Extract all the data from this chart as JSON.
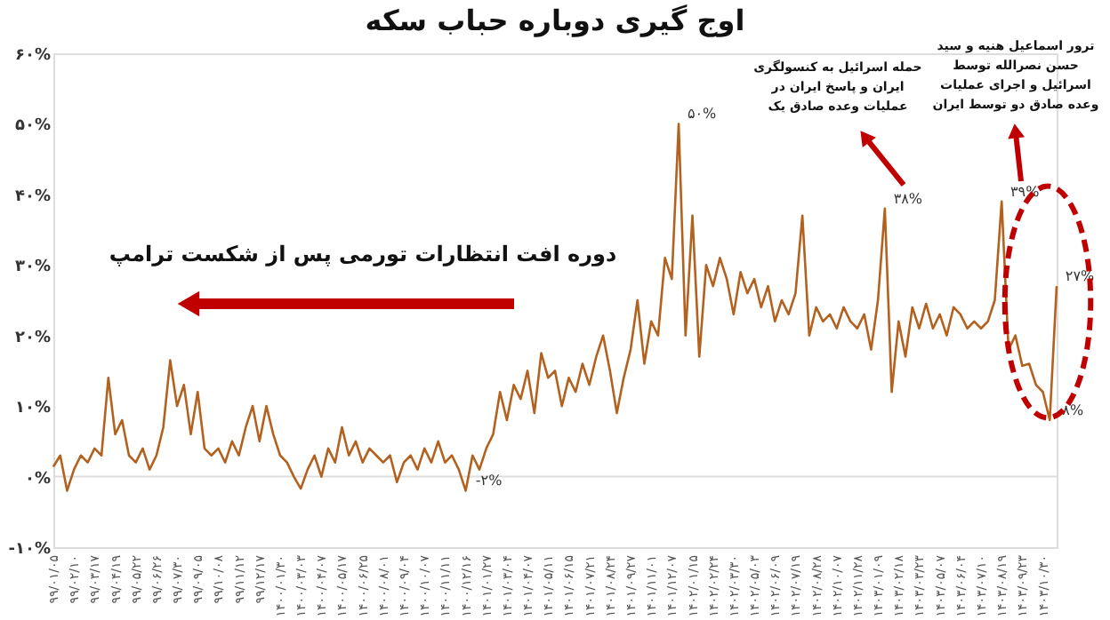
{
  "chart_data": {
    "type": "line",
    "title": "اوج گیری دوباره حباب سکه",
    "categories": [
      "۹۹/۰۱/۰۵",
      null,
      null,
      "۹۹/۰۲/۱۰",
      null,
      null,
      "۹۹/۰۳/۱۷",
      null,
      null,
      "۹۹/۰۴/۱۹",
      null,
      null,
      "۹۹/۰۵/۲۲",
      null,
      null,
      "۹۹/۰۶/۲۶",
      null,
      null,
      "۹۹/۰۷/۳۰",
      null,
      null,
      "۹۹/۰۹/۰۵",
      null,
      null,
      "۹۹/۱۰/۰۸",
      null,
      null,
      "۹۹/۱۱/۱۲",
      null,
      null,
      "۹۹/۱۲/۱۷",
      null,
      null,
      "۱۴۰۰/۰۱/۳۰",
      null,
      null,
      "۱۴۰۰/۰۳/۰۳",
      null,
      null,
      "۱۴۰۰/۰۴/۰۷",
      null,
      null,
      "۱۴۰۰/۰۵/۱۷",
      null,
      null,
      "۱۴۰۰/۰۶/۲۵",
      null,
      null,
      "۱۴۰۰/۰۸/۰۱",
      null,
      null,
      "۱۴۰۰/۰۹/۰۴",
      null,
      null,
      "۱۴۰۰/۱۰/۰۷",
      null,
      null,
      "۱۴۰۰/۱۱/۱۱",
      null,
      null,
      "۱۴۰۰/۱۲/۱۶",
      null,
      null,
      "۱۴۰۱/۰۱/۲۷",
      null,
      null,
      "۱۴۰۱/۰۳/۰۴",
      null,
      null,
      "۱۴۰۱/۰۴/۰۷",
      null,
      null,
      "۱۴۰۱/۰۵/۱۱",
      null,
      null,
      "۱۴۰۱/۰۶/۱۵",
      null,
      null,
      "۱۴۰۱/۰۷/۲۱",
      null,
      null,
      "۱۴۰۱/۰۸/۲۴",
      null,
      null,
      "۱۴۰۱/۰۹/۲۷",
      null,
      null,
      "۱۴۰۱/۱۱/۰۱",
      null,
      null,
      "۱۴۰۱/۱۲/۰۷",
      null,
      null,
      "۱۴۰۲/۰۱/۱۵",
      null,
      null,
      "۱۴۰۲/۰۲/۲۴",
      null,
      null,
      "۱۴۰۲/۰۳/۳۰",
      null,
      null,
      "۱۴۰۲/۰۵/۰۳",
      null,
      null,
      "۱۴۰۲/۰۶/۰۹",
      null,
      null,
      "۱۴۰۲/۰۷/۱۹",
      null,
      null,
      "۱۴۰۲/۰۸/۲۸",
      null,
      null,
      "۱۴۰۲/۱۰/۰۷",
      null,
      null,
      "۱۴۰۲/۱۱/۲۸",
      null,
      null,
      "۱۴۰۳/۰۱/۰۹",
      null,
      null,
      "۱۴۰۳/۰۲/۱۸",
      null,
      null,
      "۱۴۰۳/۰۳/۲۳",
      null,
      null,
      "۱۴۰۳/۰۵/۰۷",
      null,
      null,
      "۱۴۰۳/۰۶/۰۴",
      null,
      null,
      "۱۴۰۳/۰۷/۱۰",
      null,
      null,
      "۱۴۰۳/۰۸/۱۹",
      null,
      null,
      "۱۴۰۳/۰۹/۲۳",
      null,
      null,
      "۱۴۰۳/۱۰/۳۰",
      null,
      null
    ],
    "series": [
      {
        "color": "#b3611e",
        "values": [
          1.4,
          3,
          -2,
          1,
          3,
          2,
          4,
          3,
          14,
          6,
          8,
          3,
          2,
          4,
          1,
          3,
          7,
          16.5,
          10,
          13,
          6,
          12,
          4,
          3,
          4,
          2,
          5,
          3,
          7,
          10,
          5,
          10,
          6,
          3,
          2,
          0,
          -1.7,
          1,
          3,
          0,
          4,
          2,
          7,
          3,
          5,
          2,
          4,
          3,
          2,
          3,
          -0.8,
          2,
          3,
          1,
          4,
          2,
          5,
          2,
          3,
          1,
          -2,
          3,
          1,
          4,
          6,
          12,
          8,
          13,
          11,
          15,
          9,
          17.5,
          14,
          15,
          10,
          14,
          12,
          16,
          13,
          17,
          20,
          15,
          9,
          14,
          18,
          25,
          16,
          22,
          20,
          31,
          28,
          50,
          20,
          37,
          17,
          30,
          27,
          31,
          28,
          23,
          29,
          26,
          28,
          24,
          27,
          22,
          25,
          23,
          26,
          37,
          20,
          24,
          22,
          23,
          21,
          24,
          22,
          21,
          23,
          18,
          25,
          38,
          12,
          22,
          17,
          24,
          21,
          24.5,
          21,
          23,
          20,
          24,
          23,
          21,
          22,
          21,
          22,
          25,
          39,
          18,
          20,
          15.7,
          16,
          13,
          12,
          8,
          27
        ],
        "value_labels": [
          null,
          null,
          null,
          null,
          null,
          null,
          null,
          null,
          null,
          null,
          null,
          null,
          null,
          null,
          null,
          null,
          null,
          null,
          null,
          null,
          null,
          null,
          null,
          null,
          null,
          null,
          null,
          null,
          null,
          null,
          null,
          null,
          null,
          null,
          null,
          null,
          null,
          null,
          null,
          null,
          null,
          null,
          null,
          null,
          null,
          null,
          null,
          null,
          null,
          null,
          null,
          null,
          null,
          null,
          null,
          null,
          null,
          null,
          null,
          null,
          "-۲%",
          null,
          null,
          null,
          null,
          null,
          null,
          null,
          null,
          null,
          null,
          null,
          null,
          null,
          null,
          null,
          null,
          null,
          null,
          null,
          null,
          null,
          null,
          null,
          null,
          null,
          null,
          null,
          null,
          null,
          null,
          "۵۰%",
          null,
          null,
          null,
          null,
          null,
          null,
          null,
          null,
          null,
          null,
          null,
          null,
          null,
          null,
          null,
          null,
          null,
          null,
          null,
          null,
          null,
          null,
          null,
          null,
          null,
          null,
          null,
          null,
          null,
          "۳۸%",
          null,
          null,
          null,
          null,
          null,
          null,
          null,
          null,
          null,
          null,
          null,
          null,
          null,
          null,
          null,
          null,
          "۳۹%",
          null,
          null,
          null,
          null,
          null,
          null,
          "۸%",
          "۲۷%"
        ]
      }
    ],
    "ylim": [
      -10,
      60
    ],
    "yticks": [
      {
        "value": -10,
        "label": "-۱۰%"
      },
      {
        "value": 0,
        "label": "۰%"
      },
      {
        "value": 10,
        "label": "۱۰%"
      },
      {
        "value": 20,
        "label": "۲۰%"
      },
      {
        "value": 30,
        "label": "۳۰%"
      },
      {
        "value": 40,
        "label": "۴۰%"
      },
      {
        "value": 50,
        "label": "۵۰%"
      },
      {
        "value": 60,
        "label": "۶۰%"
      }
    ],
    "ref_lines": [
      {
        "axis": "y",
        "value": 0,
        "color": "#dddddd"
      }
    ],
    "annotations": [
      "دوره افت انتظارات تورمی پس از شکست ترامپ",
      "حمله اسرائیل به کنسولگری\nایران و پاسخ ایران در\nعملیات وعده صادق یک",
      "ترور اسماعیل هنیه و سید\nحسن نصرالله توسط\nاسرائیل و اجرای عملیات\nوعده صادق دو توسط ایران"
    ]
  }
}
